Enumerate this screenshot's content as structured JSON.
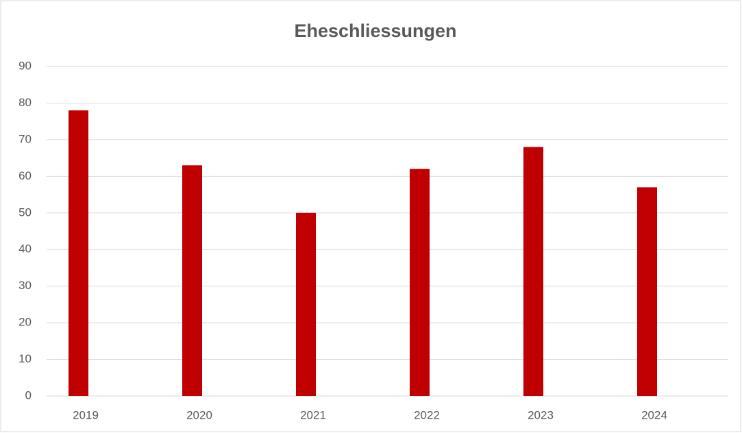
{
  "chart_data": {
    "type": "bar",
    "title": "Eheschliessungen",
    "categories": [
      "2019",
      "2020",
      "2021",
      "2022",
      "2023",
      "2024"
    ],
    "values": [
      78,
      63,
      50,
      62,
      68,
      57
    ],
    "color": "#c00000",
    "ylim": [
      0,
      90
    ],
    "yticks": [
      0,
      10,
      20,
      30,
      40,
      50,
      60,
      70,
      80,
      90
    ],
    "grid": true
  }
}
